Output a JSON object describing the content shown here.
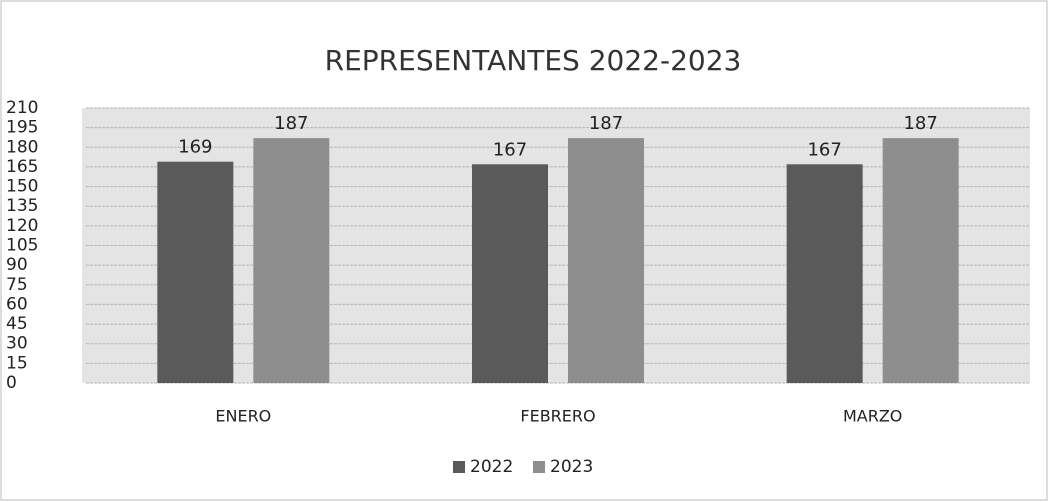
{
  "chart_data": {
    "type": "bar",
    "title": "REPRESENTANTES 2022-2023",
    "categories": [
      "ENERO",
      "FEBRERO",
      "MARZO"
    ],
    "series": [
      {
        "name": "2022",
        "color": "#5a5a5a",
        "values": [
          169,
          167,
          167
        ]
      },
      {
        "name": "2023",
        "color": "#8e8e8e",
        "values": [
          187,
          187,
          187
        ]
      }
    ],
    "ylim": [
      0,
      210
    ],
    "yticks": [
      0,
      15,
      30,
      45,
      60,
      75,
      90,
      105,
      120,
      135,
      150,
      165,
      180,
      195,
      210
    ],
    "grid": true,
    "legend": "bottom"
  }
}
